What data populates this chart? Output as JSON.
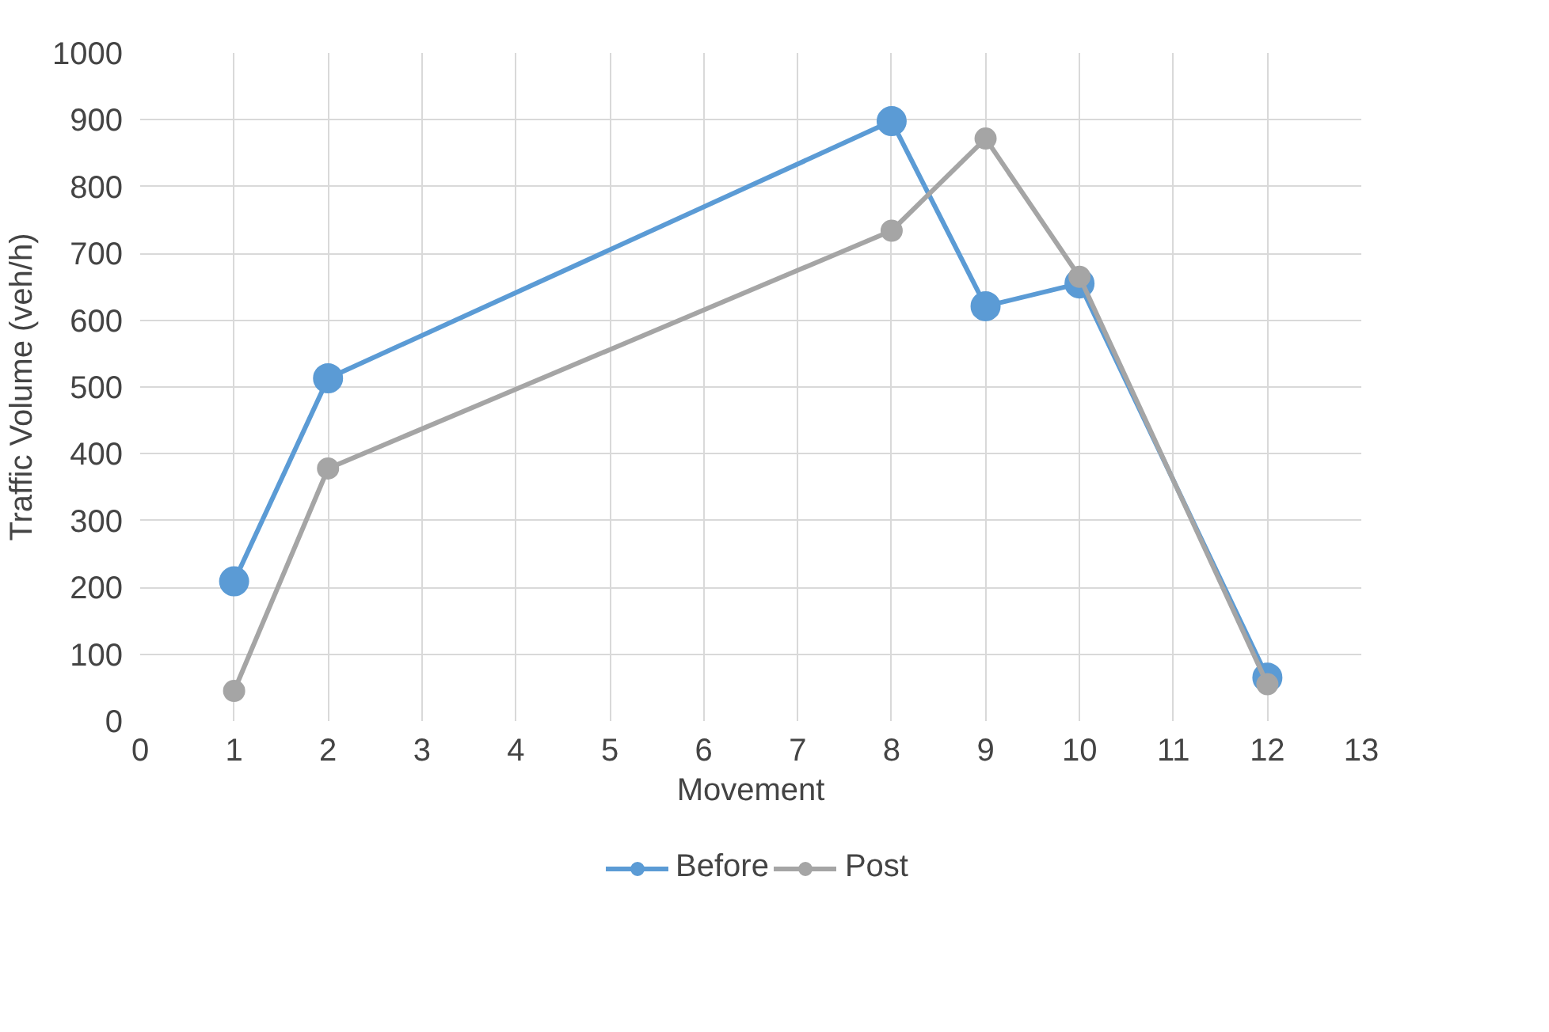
{
  "chart_data": {
    "type": "line",
    "xlabel": "Movement",
    "ylabel": "Traffic Volume (veh/h)",
    "x": [
      1,
      2,
      8,
      9,
      10,
      12
    ],
    "series": [
      {
        "name": "Before",
        "color": "#5b9bd5",
        "values": [
          209,
          513,
          898,
          621,
          655,
          65
        ]
      },
      {
        "name": "Post",
        "color": "#a5a5a5",
        "values": [
          45,
          378,
          734,
          872,
          665,
          55
        ]
      }
    ],
    "xlim": [
      0,
      13
    ],
    "xticks": [
      0,
      1,
      2,
      3,
      4,
      5,
      6,
      7,
      8,
      9,
      10,
      11,
      12,
      13
    ],
    "ylim": [
      0,
      1000
    ],
    "yticks": [
      0,
      100,
      200,
      300,
      400,
      500,
      600,
      700,
      800,
      900,
      1000
    ],
    "grid": true,
    "legend": "bottom",
    "marker": "circle",
    "line_style": "solid"
  }
}
